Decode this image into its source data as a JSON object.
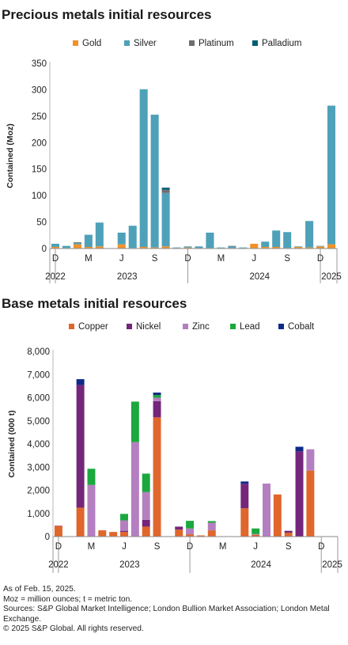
{
  "charts": [
    {
      "title": "Precious metals initial resources"
    },
    {
      "title": "Base metals initial resources"
    }
  ],
  "chart_data": [
    {
      "type": "bar",
      "stacked": true,
      "title": "Precious metals initial resources",
      "ylabel": "Contained (Moz)",
      "ylim": [
        0,
        350
      ],
      "yticks": [
        0,
        50,
        100,
        150,
        200,
        250,
        300,
        350
      ],
      "legend_position": "top",
      "categories": [
        "Dec 2022",
        "Jan 2023",
        "Feb 2023",
        "Mar 2023",
        "Apr 2023",
        "May 2023",
        "Jun 2023",
        "Jul 2023",
        "Aug 2023",
        "Sep 2023",
        "Oct 2023",
        "Nov 2023",
        "Dec 2023",
        "Jan 2024",
        "Feb 2024",
        "Mar 2024",
        "Apr 2024",
        "May 2024",
        "Jun 2024",
        "Jul 2024",
        "Aug 2024",
        "Sep 2024",
        "Oct 2024",
        "Nov 2024",
        "Dec 2024",
        "Jan 2025"
      ],
      "tick_labels": [
        {
          "label": "D",
          "index": 0
        },
        {
          "label": "M",
          "index": 3
        },
        {
          "label": "J",
          "index": 6
        },
        {
          "label": "S",
          "index": 9
        },
        {
          "label": "D",
          "index": 12
        },
        {
          "label": "M",
          "index": 15
        },
        {
          "label": "J",
          "index": 18
        },
        {
          "label": "S",
          "index": 21
        },
        {
          "label": "D",
          "index": 24
        }
      ],
      "year_labels": [
        {
          "label": "2022",
          "index": 0
        },
        {
          "label": "2023",
          "index": 6.5
        },
        {
          "label": "2024",
          "index": 18.5
        },
        {
          "label": "2025",
          "index": 25
        }
      ],
      "year_separators": [
        0.5,
        12.5,
        24.5
      ],
      "series": [
        {
          "name": "Gold",
          "color": "#f0922b",
          "values": [
            3,
            1,
            8,
            3,
            4,
            0,
            8,
            1,
            3,
            2,
            4,
            1,
            2,
            1,
            1,
            1,
            1,
            1,
            9,
            3,
            3,
            1,
            3,
            2,
            4,
            8
          ]
        },
        {
          "name": "Silver",
          "color": "#4ea1b8",
          "values": [
            6,
            4,
            3,
            23,
            45,
            0,
            22,
            42,
            298,
            251,
            101,
            1,
            2,
            3,
            29,
            1,
            3,
            1,
            0,
            10,
            31,
            30,
            1,
            50,
            1,
            262
          ]
        },
        {
          "name": "Platinum",
          "color": "#6e6e6e",
          "values": [
            0,
            0,
            1,
            0,
            0,
            0,
            0,
            0,
            0,
            0,
            6,
            0,
            0,
            0,
            0,
            0,
            1,
            0,
            0,
            0,
            0,
            0,
            0,
            0,
            0,
            0
          ]
        },
        {
          "name": "Palladium",
          "color": "#005d75",
          "values": [
            0,
            0,
            0,
            0,
            0,
            0,
            0,
            0,
            0,
            0,
            4,
            0,
            0,
            0,
            0,
            0,
            0,
            0,
            0,
            0,
            0,
            0,
            0,
            0,
            0,
            0
          ]
        }
      ]
    },
    {
      "type": "bar",
      "stacked": true,
      "title": "Base metals initial resources",
      "ylabel": "Contained (000 t)",
      "ylim": [
        0,
        8000
      ],
      "yticks": [
        0,
        1000,
        2000,
        3000,
        4000,
        5000,
        6000,
        7000,
        8000
      ],
      "ytick_labels": [
        "0",
        "1,000",
        "2,000",
        "3,000",
        "4,000",
        "5,000",
        "6,000",
        "7,000",
        "8,000"
      ],
      "legend_position": "top",
      "categories": [
        "Dec 2022",
        "Jan 2023",
        "Feb 2023",
        "Mar 2023",
        "Apr 2023",
        "May 2023",
        "Jun 2023",
        "Jul 2023",
        "Aug 2023",
        "Sep 2023",
        "Oct 2023",
        "Nov 2023",
        "Dec 2023",
        "Jan 2024",
        "Feb 2024",
        "Mar 2024",
        "Apr 2024",
        "May 2024",
        "Jun 2024",
        "Jul 2024",
        "Aug 2024",
        "Sep 2024",
        "Oct 2024",
        "Nov 2024",
        "Dec 2024",
        "Jan 2025"
      ],
      "tick_labels": [
        {
          "label": "D",
          "index": 0
        },
        {
          "label": "M",
          "index": 3
        },
        {
          "label": "J",
          "index": 6
        },
        {
          "label": "S",
          "index": 9
        },
        {
          "label": "D",
          "index": 12
        },
        {
          "label": "M",
          "index": 15
        },
        {
          "label": "J",
          "index": 18
        },
        {
          "label": "S",
          "index": 21
        },
        {
          "label": "D",
          "index": 24
        }
      ],
      "year_labels": [
        {
          "label": "2022",
          "index": 0
        },
        {
          "label": "2023",
          "index": 6.5
        },
        {
          "label": "2024",
          "index": 18.5
        },
        {
          "label": "2025",
          "index": 25
        }
      ],
      "year_separators": [
        0.5,
        12.5,
        24.5
      ],
      "series": [
        {
          "name": "Copper",
          "color": "#e0662c",
          "values": [
            460,
            0,
            1250,
            0,
            270,
            200,
            200,
            0,
            430,
            5150,
            0,
            300,
            100,
            50,
            270,
            0,
            0,
            1220,
            80,
            0,
            1820,
            170,
            0,
            2850,
            0,
            0
          ]
        },
        {
          "name": "Nickel",
          "color": "#74267a",
          "values": [
            0,
            0,
            5300,
            0,
            0,
            0,
            50,
            0,
            290,
            700,
            0,
            130,
            0,
            0,
            0,
            0,
            0,
            1060,
            0,
            0,
            0,
            80,
            3680,
            0,
            0,
            0
          ]
        },
        {
          "name": "Zinc",
          "color": "#b47fc0",
          "values": [
            20,
            0,
            0,
            2230,
            0,
            0,
            450,
            4080,
            1200,
            150,
            0,
            0,
            250,
            0,
            330,
            0,
            0,
            0,
            30,
            2290,
            0,
            0,
            0,
            920,
            0,
            0
          ]
        },
        {
          "name": "Lead",
          "color": "#1ba83e",
          "values": [
            0,
            0,
            0,
            700,
            0,
            0,
            280,
            1750,
            800,
            120,
            0,
            0,
            330,
            0,
            70,
            0,
            0,
            0,
            240,
            0,
            0,
            0,
            0,
            0,
            0,
            0
          ]
        },
        {
          "name": "Cobalt",
          "color": "#0d2a8a",
          "values": [
            0,
            0,
            250,
            0,
            0,
            0,
            0,
            0,
            0,
            100,
            0,
            0,
            0,
            0,
            0,
            0,
            0,
            100,
            0,
            0,
            0,
            0,
            200,
            0,
            0,
            0
          ]
        }
      ]
    }
  ],
  "footer": {
    "line1": "As of Feb. 15, 2025.",
    "line2": "Moz = million ounces; t = metric ton.",
    "line3": "Sources: S&P Global Market Intelligence; London Bullion Market Association; London Metal Exchange.",
    "line4": "© 2025 S&P Global. All rights reserved."
  }
}
